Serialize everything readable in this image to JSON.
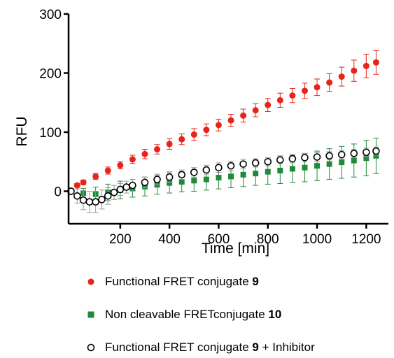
{
  "chart_data": {
    "type": "scatter",
    "xlabel": "Time [min]",
    "ylabel": "RFU",
    "xlim": [
      -10,
      1290
    ],
    "ylim": [
      -55,
      300
    ],
    "xticks": [
      200,
      400,
      600,
      800,
      1000,
      1200
    ],
    "yticks": [
      0,
      100,
      200,
      300
    ],
    "xtick_labels": [
      "200",
      "400",
      "600",
      "800",
      "1000",
      "1200"
    ],
    "ytick_labels": [
      "0",
      "100",
      "200",
      "300"
    ],
    "legend_position": "bottom",
    "grid": false,
    "series": [
      {
        "name_parts": [
          "Functional FRET conjugate ",
          "9",
          ""
        ],
        "marker": "filled-circle",
        "color": "#e8231b",
        "x": [
          0,
          25,
          50,
          100,
          150,
          200,
          250,
          300,
          350,
          400,
          450,
          500,
          550,
          600,
          650,
          700,
          750,
          800,
          850,
          900,
          950,
          1000,
          1050,
          1100,
          1150,
          1200,
          1240
        ],
        "y": [
          0,
          10,
          15,
          25,
          35,
          44,
          54,
          63,
          71,
          80,
          88,
          96,
          104,
          112,
          120,
          128,
          137,
          146,
          154,
          162,
          170,
          176,
          184,
          194,
          204,
          212,
          218
        ],
        "err": [
          0,
          3,
          4,
          5,
          6,
          6,
          7,
          8,
          8,
          9,
          9,
          10,
          10,
          10,
          10,
          11,
          11,
          11,
          12,
          12,
          13,
          14,
          15,
          16,
          18,
          20,
          20
        ]
      },
      {
        "name_parts": [
          "Non cleavable FRETconjugate ",
          "10",
          ""
        ],
        "marker": "filled-square",
        "color": "#1e8a3a",
        "x": [
          0,
          50,
          100,
          150,
          200,
          250,
          300,
          350,
          400,
          450,
          500,
          550,
          600,
          650,
          700,
          750,
          800,
          850,
          900,
          950,
          1000,
          1050,
          1100,
          1150,
          1200,
          1240
        ],
        "y": [
          0,
          -3,
          -5,
          -2,
          2,
          5,
          8,
          11,
          14,
          16,
          18,
          20,
          23,
          25,
          28,
          30,
          33,
          35,
          38,
          40,
          43,
          46,
          49,
          52,
          56,
          60
        ],
        "err": [
          0,
          8,
          12,
          14,
          15,
          15,
          16,
          16,
          17,
          17,
          18,
          18,
          19,
          19,
          20,
          20,
          21,
          22,
          23,
          24,
          25,
          26,
          27,
          28,
          30,
          30
        ]
      },
      {
        "name_parts": [
          "Functional FRET conjugate ",
          "9",
          " + Inhibitor"
        ],
        "marker": "open-circle",
        "color": "#000000",
        "x": [
          0,
          25,
          50,
          75,
          100,
          125,
          150,
          175,
          200,
          225,
          250,
          300,
          350,
          400,
          450,
          500,
          550,
          600,
          650,
          700,
          750,
          800,
          850,
          900,
          950,
          1000,
          1050,
          1100,
          1150,
          1200,
          1240
        ],
        "y": [
          0,
          -8,
          -15,
          -18,
          -18,
          -14,
          -8,
          -2,
          3,
          7,
          10,
          15,
          20,
          24,
          28,
          32,
          36,
          40,
          43,
          46,
          48,
          50,
          53,
          55,
          57,
          58,
          60,
          62,
          64,
          66,
          68
        ],
        "err": [
          0,
          12,
          16,
          18,
          18,
          16,
          14,
          12,
          10,
          10,
          10,
          9,
          9,
          9,
          8,
          8,
          8,
          8,
          8,
          8,
          7,
          7,
          7,
          7,
          7,
          7,
          7,
          7,
          7,
          7,
          7
        ]
      }
    ]
  }
}
